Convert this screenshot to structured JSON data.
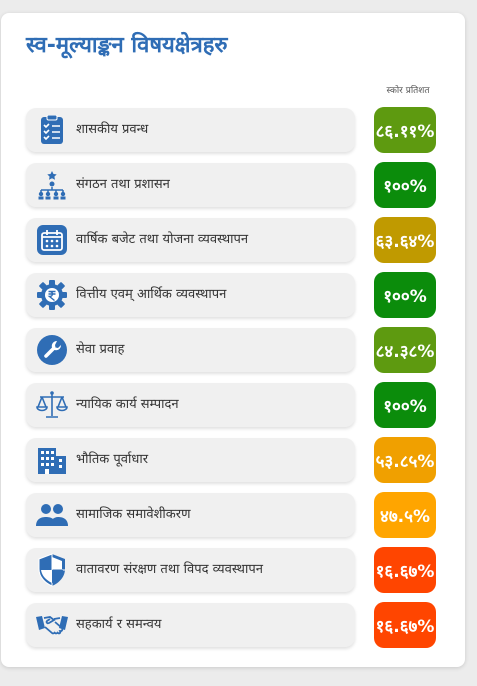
{
  "title": "स्व-मूल्याङ्कन विषयक्षेत्रहरु",
  "column_header": "स्कोर प्रतिशत",
  "items": [
    {
      "label": "शासकीय प्रवन्ध",
      "score": "८६.११%",
      "color": "#5e9a10",
      "icon": "clipboard-checklist-icon"
    },
    {
      "label": "संगठन तथा प्रशासन",
      "score": "१००%",
      "color": "#0b8c0b",
      "icon": "org-chart-icon"
    },
    {
      "label": "वार्षिक बजेट तथा योजना व्यवस्थापन",
      "score": "६३.६४%",
      "color": "#c09a00",
      "icon": "calendar-icon"
    },
    {
      "label": "वित्तीय एवम् आर्थिक व्यवस्थापन",
      "score": "१००%",
      "color": "#0b8c0b",
      "icon": "rupee-gear-icon"
    },
    {
      "label": "सेवा प्रवाह",
      "score": "८४.३८%",
      "color": "#5e9a10",
      "icon": "wrench-icon"
    },
    {
      "label": "न्यायिक कार्य सम्पादन",
      "score": "१००%",
      "color": "#0b8c0b",
      "icon": "scales-icon"
    },
    {
      "label": "भौतिक पूर्वाधार",
      "score": "५३.८५%",
      "color": "#f0a000",
      "icon": "building-icon"
    },
    {
      "label": "सामाजिक समावेशीकरण",
      "score": "४७.५%",
      "color": "#ffa500",
      "icon": "people-icon"
    },
    {
      "label": "वातावरण संरक्षण तथा विपद व्यवस्थापन",
      "score": "१६.६७%",
      "color": "#ff4500",
      "icon": "shield-icon"
    },
    {
      "label": "सहकार्य र समन्वय",
      "score": "१६.६७%",
      "color": "#ff4500",
      "icon": "handshake-icon"
    }
  ]
}
